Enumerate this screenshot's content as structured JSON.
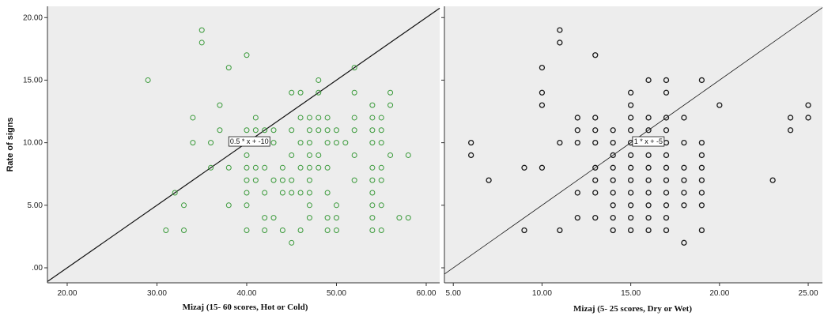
{
  "colors": {
    "panel_bg": "#ededed",
    "left_point": "#3a9a3a",
    "right_point": "#1a1a1a",
    "line": "#111111"
  },
  "chart_data": [
    {
      "type": "scatter",
      "ylabel": "Rate of signs",
      "xlabel": "Mizaj (15- 60 scores, Hot or Cold)",
      "xlim": [
        17.8,
        61.5
      ],
      "ylim": [
        -1.2,
        20.9
      ],
      "xticks": [
        "20.00",
        "30.00",
        "40.00",
        "50.00",
        "60.00"
      ],
      "yticks": [
        ".00",
        "5.00",
        "10.00",
        "15.00",
        "20.00"
      ],
      "fit_label": "0.5 * x + -10",
      "fit": {
        "slope": 0.5,
        "intercept": -10
      },
      "label_at": [
        38,
        10.1
      ],
      "point_color": "#3a9a3a",
      "points": [
        [
          29,
          15
        ],
        [
          35,
          19
        ],
        [
          35,
          18
        ],
        [
          38,
          16
        ],
        [
          40,
          17
        ],
        [
          48,
          15
        ],
        [
          52,
          16
        ],
        [
          37,
          13
        ],
        [
          34,
          12
        ],
        [
          31,
          3
        ],
        [
          32,
          6
        ],
        [
          33,
          5
        ],
        [
          33,
          3
        ],
        [
          34,
          10
        ],
        [
          36,
          10
        ],
        [
          36,
          8
        ],
        [
          37,
          11
        ],
        [
          38,
          8
        ],
        [
          38,
          5
        ],
        [
          39,
          10
        ],
        [
          40,
          11
        ],
        [
          40,
          10
        ],
        [
          40,
          9
        ],
        [
          40,
          8
        ],
        [
          40,
          7
        ],
        [
          40,
          6
        ],
        [
          40,
          5
        ],
        [
          40,
          3
        ],
        [
          41,
          12
        ],
        [
          41,
          11
        ],
        [
          41,
          8
        ],
        [
          41,
          7
        ],
        [
          42,
          11
        ],
        [
          42,
          10
        ],
        [
          42,
          8
        ],
        [
          42,
          6
        ],
        [
          42,
          4
        ],
        [
          42,
          3
        ],
        [
          43,
          11
        ],
        [
          43,
          10
        ],
        [
          43,
          7
        ],
        [
          43,
          4
        ],
        [
          44,
          8
        ],
        [
          44,
          7
        ],
        [
          44,
          6
        ],
        [
          44,
          3
        ],
        [
          45,
          14
        ],
        [
          45,
          11
        ],
        [
          45,
          9
        ],
        [
          45,
          7
        ],
        [
          45,
          6
        ],
        [
          45,
          2
        ],
        [
          46,
          14
        ],
        [
          46,
          12
        ],
        [
          46,
          10
        ],
        [
          46,
          8
        ],
        [
          46,
          6
        ],
        [
          46,
          3
        ],
        [
          47,
          12
        ],
        [
          47,
          11
        ],
        [
          47,
          10
        ],
        [
          47,
          9
        ],
        [
          47,
          8
        ],
        [
          47,
          7
        ],
        [
          47,
          6
        ],
        [
          47,
          5
        ],
        [
          47,
          4
        ],
        [
          48,
          14
        ],
        [
          48,
          12
        ],
        [
          48,
          11
        ],
        [
          48,
          9
        ],
        [
          48,
          8
        ],
        [
          49,
          12
        ],
        [
          49,
          11
        ],
        [
          49,
          10
        ],
        [
          49,
          8
        ],
        [
          49,
          6
        ],
        [
          49,
          4
        ],
        [
          49,
          3
        ],
        [
          50,
          11
        ],
        [
          50,
          10
        ],
        [
          50,
          5
        ],
        [
          50,
          4
        ],
        [
          50,
          3
        ],
        [
          51,
          10
        ],
        [
          52,
          14
        ],
        [
          52,
          12
        ],
        [
          52,
          11
        ],
        [
          52,
          9
        ],
        [
          52,
          7
        ],
        [
          54,
          13
        ],
        [
          54,
          12
        ],
        [
          54,
          11
        ],
        [
          54,
          10
        ],
        [
          54,
          8
        ],
        [
          54,
          7
        ],
        [
          54,
          6
        ],
        [
          54,
          5
        ],
        [
          54,
          4
        ],
        [
          54,
          3
        ],
        [
          55,
          12
        ],
        [
          55,
          11
        ],
        [
          55,
          10
        ],
        [
          55,
          8
        ],
        [
          55,
          7
        ],
        [
          55,
          5
        ],
        [
          55,
          3
        ],
        [
          56,
          14
        ],
        [
          56,
          13
        ],
        [
          56,
          9
        ],
        [
          57,
          4
        ],
        [
          58,
          9
        ],
        [
          58,
          4
        ]
      ]
    },
    {
      "type": "scatter",
      "xlabel": "Mizaj (5- 25 scores, Dry or Wet)",
      "xlim": [
        4.5,
        25.8
      ],
      "ylim": [
        -1.2,
        20.9
      ],
      "xticks": [
        "5.00",
        "10.00",
        "15.00",
        "20.00",
        "25.00"
      ],
      "yticks": [],
      "fit_label": "1 * x + -5",
      "fit": {
        "slope": 1,
        "intercept": -5
      },
      "label_at": [
        15.1,
        10.1
      ],
      "point_color": "#1a1a1a",
      "points": [
        [
          6,
          10
        ],
        [
          6,
          9
        ],
        [
          7,
          7
        ],
        [
          9,
          8
        ],
        [
          9,
          3
        ],
        [
          10,
          16
        ],
        [
          10,
          14
        ],
        [
          10,
          13
        ],
        [
          10,
          8
        ],
        [
          11,
          19
        ],
        [
          11,
          18
        ],
        [
          11,
          10
        ],
        [
          11,
          3
        ],
        [
          12,
          12
        ],
        [
          12,
          11
        ],
        [
          12,
          10
        ],
        [
          12,
          6
        ],
        [
          12,
          4
        ],
        [
          13,
          17
        ],
        [
          13,
          12
        ],
        [
          13,
          11
        ],
        [
          13,
          10
        ],
        [
          13,
          8
        ],
        [
          13,
          7
        ],
        [
          13,
          6
        ],
        [
          13,
          4
        ],
        [
          14,
          11
        ],
        [
          14,
          10
        ],
        [
          14,
          9
        ],
        [
          14,
          8
        ],
        [
          14,
          7
        ],
        [
          14,
          6
        ],
        [
          14,
          5
        ],
        [
          14,
          4
        ],
        [
          14,
          3
        ],
        [
          15,
          14
        ],
        [
          15,
          13
        ],
        [
          15,
          12
        ],
        [
          15,
          11
        ],
        [
          15,
          10
        ],
        [
          15,
          9
        ],
        [
          15,
          8
        ],
        [
          15,
          7
        ],
        [
          15,
          6
        ],
        [
          15,
          5
        ],
        [
          15,
          4
        ],
        [
          15,
          3
        ],
        [
          16,
          15
        ],
        [
          16,
          12
        ],
        [
          16,
          11
        ],
        [
          16,
          10
        ],
        [
          16,
          9
        ],
        [
          16,
          8
        ],
        [
          16,
          7
        ],
        [
          16,
          6
        ],
        [
          16,
          5
        ],
        [
          16,
          4
        ],
        [
          16,
          3
        ],
        [
          17,
          15
        ],
        [
          17,
          14
        ],
        [
          17,
          12
        ],
        [
          17,
          11
        ],
        [
          17,
          10
        ],
        [
          17,
          9
        ],
        [
          17,
          8
        ],
        [
          17,
          7
        ],
        [
          17,
          6
        ],
        [
          17,
          5
        ],
        [
          17,
          4
        ],
        [
          17,
          3
        ],
        [
          18,
          12
        ],
        [
          18,
          10
        ],
        [
          18,
          8
        ],
        [
          18,
          7
        ],
        [
          18,
          6
        ],
        [
          18,
          5
        ],
        [
          18,
          2
        ],
        [
          19,
          15
        ],
        [
          19,
          10
        ],
        [
          19,
          9
        ],
        [
          19,
          8
        ],
        [
          19,
          7
        ],
        [
          19,
          6
        ],
        [
          19,
          5
        ],
        [
          19,
          3
        ],
        [
          20,
          13
        ],
        [
          23,
          7
        ],
        [
          24,
          12
        ],
        [
          24,
          11
        ],
        [
          25,
          13
        ],
        [
          25,
          12
        ]
      ]
    }
  ]
}
